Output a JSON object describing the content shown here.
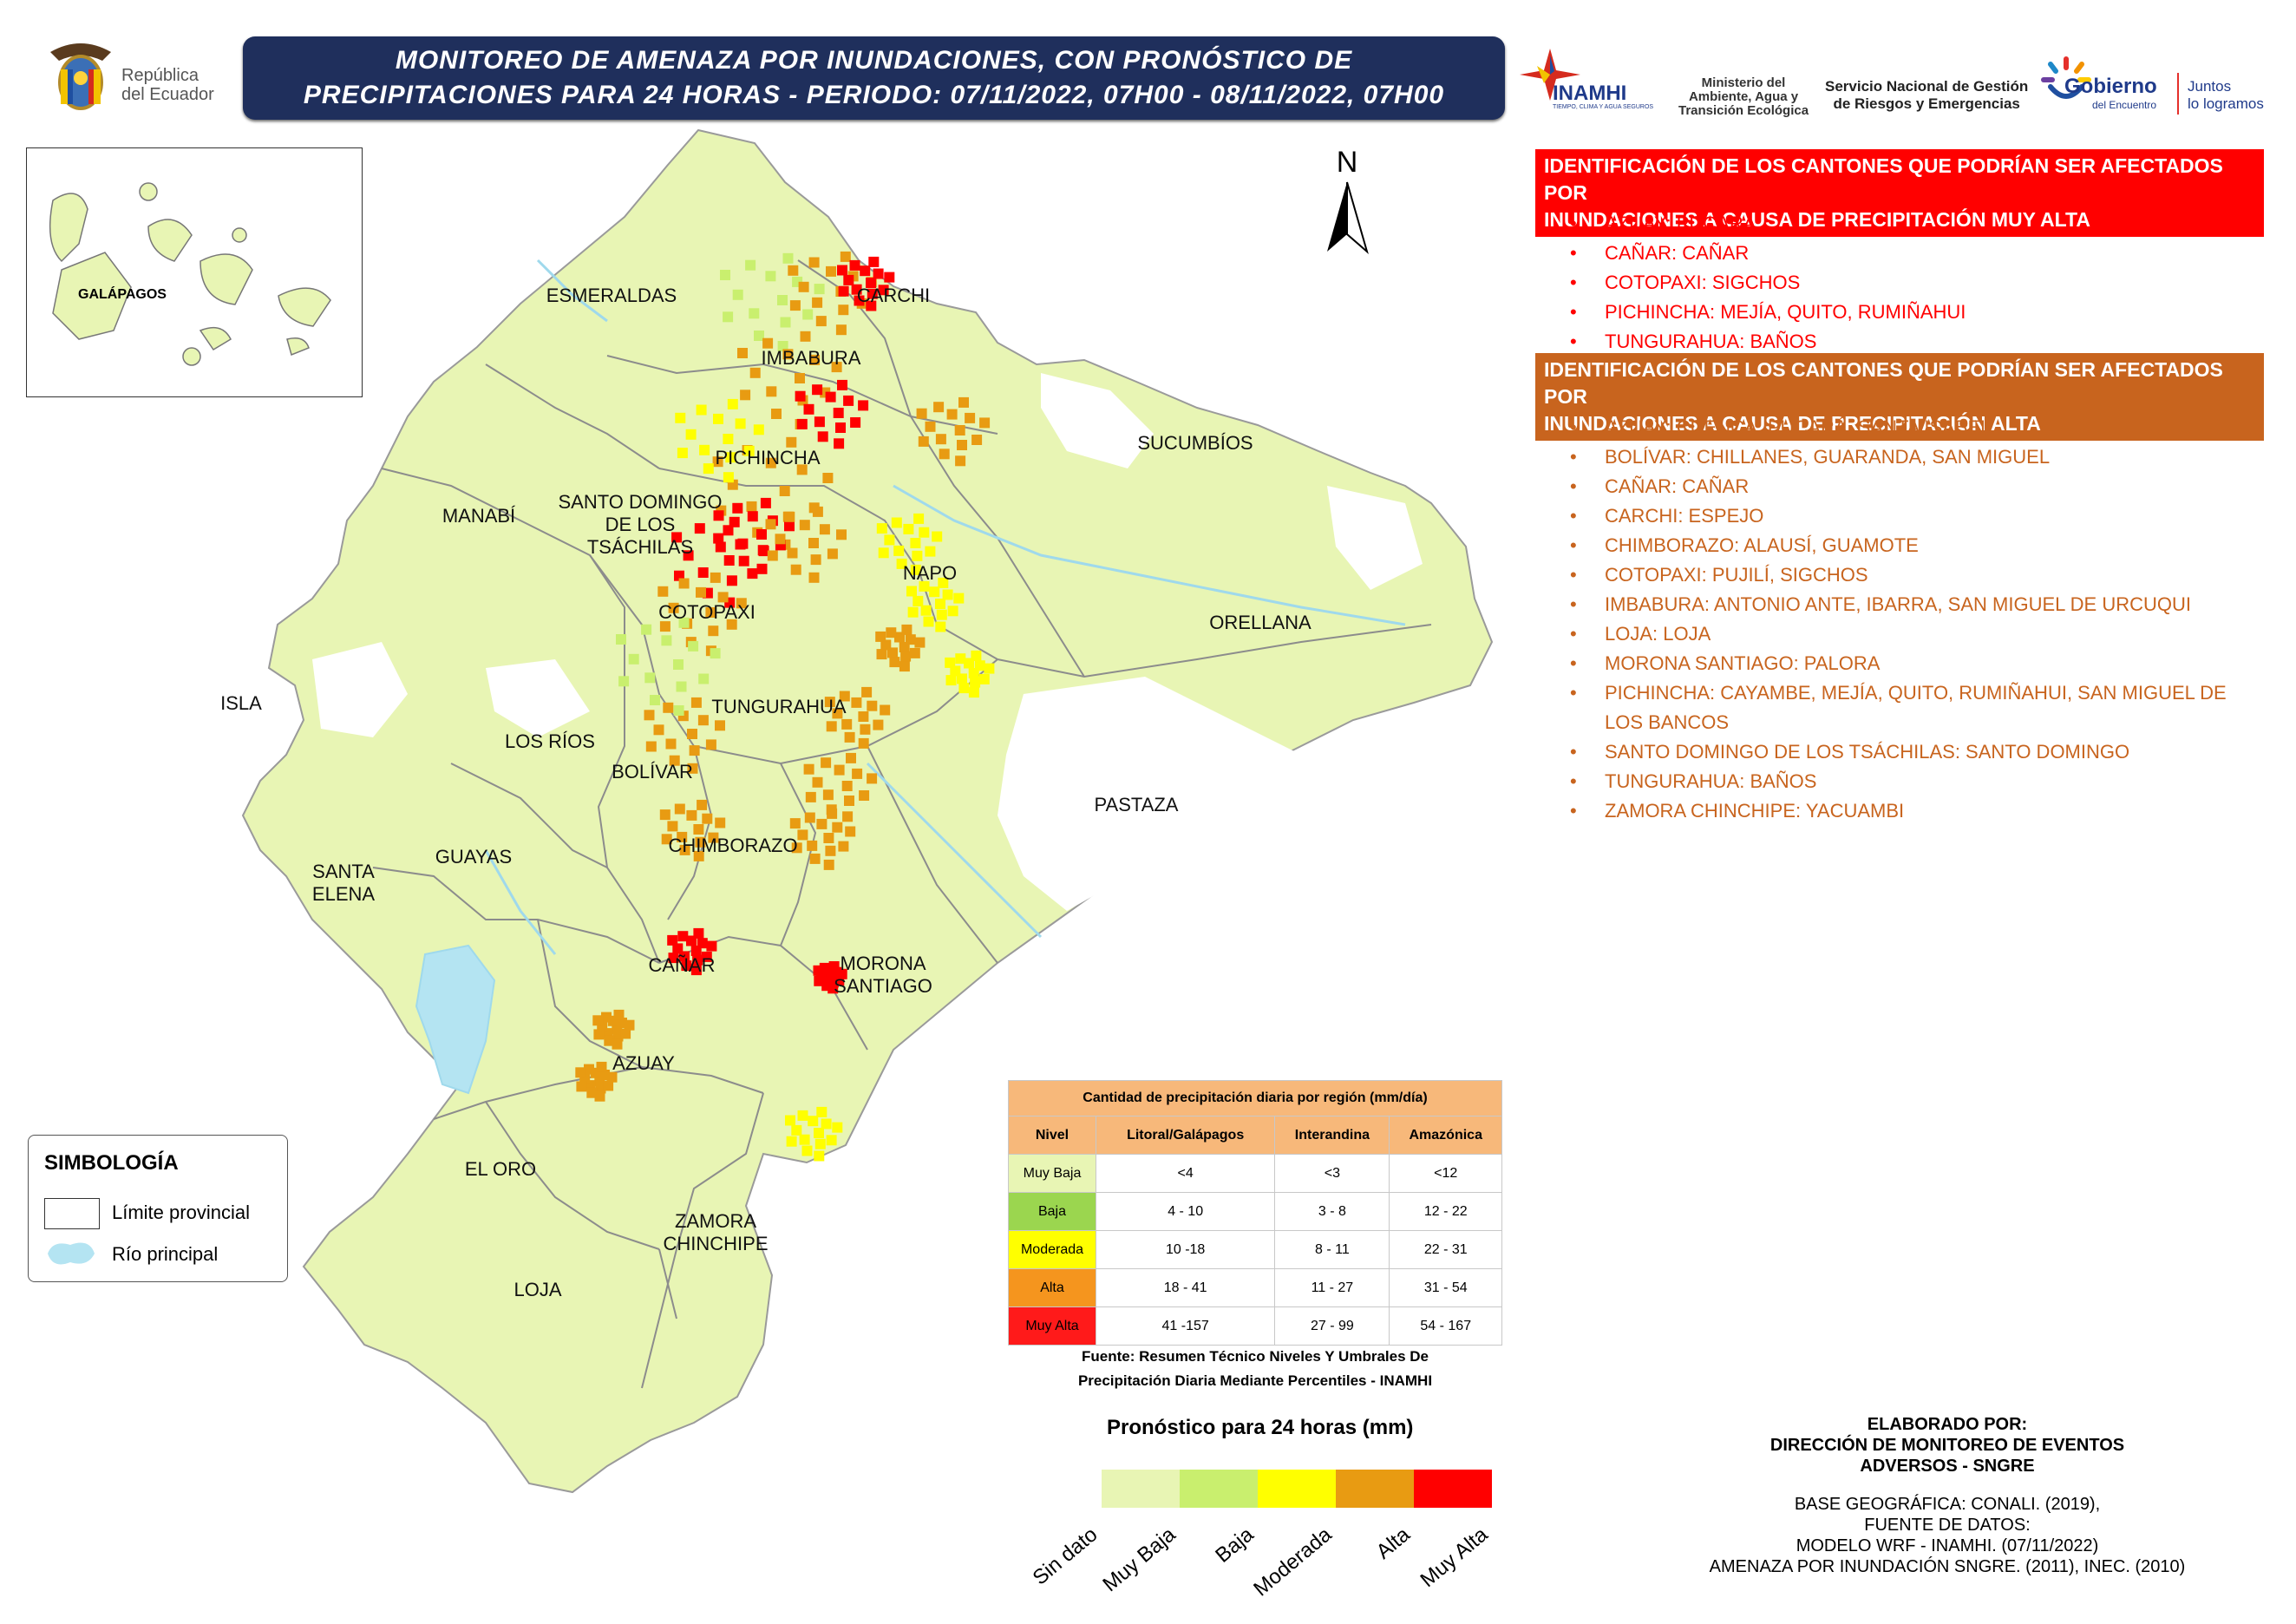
{
  "header": {
    "country_text_1": "República",
    "country_text_2": "del Ecuador",
    "title_line_1": "MONITOREO DE AMENAZA POR INUNDACIONES, CON PRONÓSTICO DE",
    "title_line_2": "PRECIPITACIONES  PARA 24  HORAS - PERIODO: 07/11/2022, 07H00 - 08/11/2022, 07H00",
    "logos": {
      "inamhi": "INAMHI",
      "inamhi_sub": "TIEMPO, CLIMA Y AGUA SEGUROS",
      "ministerio": [
        "Ministerio del",
        "Ambiente, Agua y",
        "Transición Ecológica"
      ],
      "sngre": [
        "Servicio Nacional de Gestión",
        "de Riesgos y Emergencias"
      ],
      "gobierno": "Gobierno",
      "gobierno_sub": "del Encuentro",
      "juntos": [
        "Juntos",
        "lo logramos"
      ]
    }
  },
  "map": {
    "north_label": "N",
    "inset_label": "GALÁPAGOS",
    "provinces": [
      "ESMERALDAS",
      "CARCHI",
      "IMBABURA",
      "SUCUMBÍOS",
      "PICHINCHA",
      "MANABÍ",
      "SANTO DOMINGO",
      "DE LOS",
      "TSÁCHILAS",
      "NAPO",
      "COTOPAXI",
      "ORELLANA",
      "ISLA",
      "TUNGURAHUA",
      "LOS RÍOS",
      "BOLÍVAR",
      "PASTAZA",
      "CHIMBORAZO",
      "GUAYAS",
      "SANTA",
      "ELENA",
      "CAÑAR",
      "MORONA",
      "SANTIAGO",
      "AZUAY",
      "EL ORO",
      "ZAMORA",
      "CHINCHIPE",
      "LOJA"
    ]
  },
  "colors": {
    "land": "#e8f5b4",
    "muy_baja": "#e8f5b4",
    "baja": "#c9ef6e",
    "moderada": "#ffff00",
    "alta": "#e89b12",
    "muy_alta": "#ff0000",
    "water": "#b4e4f2",
    "header_red": "#ff0000",
    "header_orange": "#c8641e",
    "banner": "#1f2f5c"
  },
  "muy_alta_panel": {
    "heading": [
      "IDENTIFICACIÓN DE LOS CANTONES QUE PODRÍAN SER AFECTADOS POR",
      "INUNDACIONES A CAUSA DE  PRECIPITACIÓN MUY ALTA"
    ],
    "items": [
      "AZUAY: PUCARÁ",
      "CAÑAR: CAÑAR",
      "COTOPAXI: SIGCHOS",
      "PICHINCHA: MEJÍA, QUITO, RUMIÑAHUI",
      "TUNGURAHUA: BAÑOS"
    ]
  },
  "alta_panel": {
    "heading": [
      "IDENTIFICACIÓN DE LOS CANTONES QUE PODRÍAN SER AFECTADOS POR",
      "INUNDACIONES A CAUSA DE  PRECIPITACIÓN  ALTA"
    ],
    "items": [
      "AZUAY: CUENCA, PUCARÁ, SANTA ISABEL",
      "BOLÍVAR: CHILLANES, GUARANDA, SAN MIGUEL",
      "CAÑAR: CAÑAR",
      "CARCHI: ESPEJO",
      "CHIMBORAZO: ALAUSÍ, GUAMOTE",
      "COTOPAXI: PUJILÍ, SIGCHOS",
      "IMBABURA: ANTONIO ANTE, IBARRA, SAN MIGUEL DE URCUQUI",
      "LOJA: LOJA",
      "MORONA SANTIAGO: PALORA",
      "PICHINCHA: CAYAMBE, MEJÍA, QUITO, RUMIÑAHUI, SAN MIGUEL DE LOS BANCOS",
      "SANTO DOMINGO DE LOS TSÁCHILAS: SANTO DOMINGO",
      "TUNGURAHUA: BAÑOS",
      "ZAMORA CHINCHIPE: YACUAMBI"
    ]
  },
  "precip_table": {
    "title": "Cantidad de precipitación diaria por región (mm/día)",
    "headers": [
      "Nivel",
      "Litoral/Galápagos",
      "Interandina",
      "Amazónica"
    ],
    "rows": [
      {
        "nivel": "Muy Baja",
        "litoral": "<4",
        "interandina": "<3",
        "amazonica": "<12",
        "color": "#e8f5b4"
      },
      {
        "nivel": "Baja",
        "litoral": "4 - 10",
        "interandina": "3 - 8",
        "amazonica": "12 - 22",
        "color": "#9bd64f"
      },
      {
        "nivel": "Moderada",
        "litoral": "10 -18",
        "interandina": "8 - 11",
        "amazonica": "22 - 31",
        "color": "#ffff00"
      },
      {
        "nivel": "Alta",
        "litoral": "18 - 41",
        "interandina": "11 - 27",
        "amazonica": "31 - 54",
        "color": "#f5951e"
      },
      {
        "nivel": "Muy Alta",
        "litoral": "41 -157",
        "interandina": "27 - 99",
        "amazonica": "54 - 167",
        "color": "#ff1a1a"
      }
    ],
    "source": [
      "Fuente: Resumen Técnico Niveles Y Umbrales De",
      "Precipitación Diaria Mediante Percentiles - INAMHI"
    ]
  },
  "symbology": {
    "title": "SIMBOLOGÍA",
    "limite": "Límite provincial",
    "rio": "Río principal"
  },
  "forecast_scale": {
    "title": "Pronóstico para 24 horas (mm)",
    "labels": [
      "Sin dato",
      "Muy Baja",
      "Baja",
      "Moderada",
      "Alta",
      "Muy Alta"
    ],
    "colors": [
      "#e8f5b4",
      "#c9ef6e",
      "#ffff00",
      "#e89b12",
      "#ff0000"
    ]
  },
  "credits": {
    "elaborado": [
      "ELABORADO POR:",
      "DIRECCIÓN DE MONITOREO DE EVENTOS",
      "ADVERSOS - SNGRE"
    ],
    "fuentes": [
      "BASE GEOGRÁFICA: CONALI. (2019),",
      "FUENTE DE DATOS:",
      "MODELO WRF - INAMHI. (07/11/2022)",
      "AMENAZA POR INUNDACIÓN SNGRE. (2011), INEC. (2010)"
    ]
  }
}
